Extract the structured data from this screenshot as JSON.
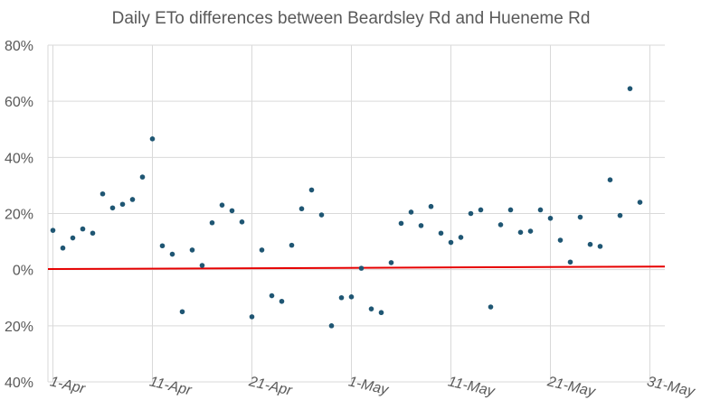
{
  "chart_data": {
    "type": "scatter",
    "title": "Daily ETo differences between Beardsley Rd and Hueneme Rd",
    "xlabel": "",
    "ylabel": "",
    "ylim": [
      -0.4,
      0.8
    ],
    "yticks": [
      0.8,
      0.6,
      0.4,
      0.2,
      0.0,
      -0.2,
      -0.4
    ],
    "ytick_labels": [
      "80%",
      "60%",
      "40%",
      "20%",
      "0%",
      "20%",
      "40%"
    ],
    "xlim": [
      "2024-03-31",
      "2024-06-01"
    ],
    "xticks": [
      "2024-04-01",
      "2024-04-11",
      "2024-04-21",
      "2024-05-01",
      "2024-05-11",
      "2024-05-21",
      "2024-05-31"
    ],
    "xtick_labels": [
      "1-Apr",
      "11-Apr",
      "21-Apr",
      "1-May",
      "11-May",
      "21-May",
      "31-May"
    ],
    "grid": {
      "x": true,
      "y": true
    },
    "marker_color": "#1f5673",
    "reference_line_color": "#e60000",
    "reference_line": {
      "from": [
        "2024-03-31",
        0.002
      ],
      "to": [
        "2024-06-01",
        0.011
      ]
    },
    "points": [
      {
        "x": "2024-04-01",
        "y": 0.14
      },
      {
        "x": "2024-04-02",
        "y": 0.077
      },
      {
        "x": "2024-04-03",
        "y": 0.113
      },
      {
        "x": "2024-04-04",
        "y": 0.145
      },
      {
        "x": "2024-04-05",
        "y": 0.13
      },
      {
        "x": "2024-04-06",
        "y": 0.27
      },
      {
        "x": "2024-04-07",
        "y": 0.22
      },
      {
        "x": "2024-04-08",
        "y": 0.233
      },
      {
        "x": "2024-04-09",
        "y": 0.25
      },
      {
        "x": "2024-04-10",
        "y": 0.33
      },
      {
        "x": "2024-04-11",
        "y": 0.466
      },
      {
        "x": "2024-04-12",
        "y": 0.085
      },
      {
        "x": "2024-04-13",
        "y": 0.055
      },
      {
        "x": "2024-04-14",
        "y": -0.15
      },
      {
        "x": "2024-04-15",
        "y": 0.07
      },
      {
        "x": "2024-04-16",
        "y": 0.015
      },
      {
        "x": "2024-04-17",
        "y": 0.167
      },
      {
        "x": "2024-04-18",
        "y": 0.23
      },
      {
        "x": "2024-04-19",
        "y": 0.21
      },
      {
        "x": "2024-04-20",
        "y": 0.17
      },
      {
        "x": "2024-04-21",
        "y": -0.168
      },
      {
        "x": "2024-04-22",
        "y": 0.07
      },
      {
        "x": "2024-04-23",
        "y": -0.093
      },
      {
        "x": "2024-04-24",
        "y": -0.113
      },
      {
        "x": "2024-04-25",
        "y": 0.087
      },
      {
        "x": "2024-04-26",
        "y": 0.217
      },
      {
        "x": "2024-04-27",
        "y": 0.284
      },
      {
        "x": "2024-04-28",
        "y": 0.195
      },
      {
        "x": "2024-04-29",
        "y": -0.2
      },
      {
        "x": "2024-04-30",
        "y": -0.1
      },
      {
        "x": "2024-05-01",
        "y": -0.097
      },
      {
        "x": "2024-05-02",
        "y": 0.005
      },
      {
        "x": "2024-05-03",
        "y": -0.14
      },
      {
        "x": "2024-05-04",
        "y": -0.153
      },
      {
        "x": "2024-05-05",
        "y": 0.025
      },
      {
        "x": "2024-05-06",
        "y": 0.165
      },
      {
        "x": "2024-05-07",
        "y": 0.205
      },
      {
        "x": "2024-05-08",
        "y": 0.157
      },
      {
        "x": "2024-05-09",
        "y": 0.225
      },
      {
        "x": "2024-05-10",
        "y": 0.13
      },
      {
        "x": "2024-05-11",
        "y": 0.097
      },
      {
        "x": "2024-05-12",
        "y": 0.115
      },
      {
        "x": "2024-05-13",
        "y": 0.2
      },
      {
        "x": "2024-05-14",
        "y": 0.213
      },
      {
        "x": "2024-05-15",
        "y": -0.133
      },
      {
        "x": "2024-05-16",
        "y": 0.16
      },
      {
        "x": "2024-05-17",
        "y": 0.213
      },
      {
        "x": "2024-05-18",
        "y": 0.133
      },
      {
        "x": "2024-05-19",
        "y": 0.137
      },
      {
        "x": "2024-05-20",
        "y": 0.213
      },
      {
        "x": "2024-05-21",
        "y": 0.183
      },
      {
        "x": "2024-05-22",
        "y": 0.105
      },
      {
        "x": "2024-05-23",
        "y": 0.027
      },
      {
        "x": "2024-05-24",
        "y": 0.187
      },
      {
        "x": "2024-05-25",
        "y": 0.09
      },
      {
        "x": "2024-05-26",
        "y": 0.083
      },
      {
        "x": "2024-05-27",
        "y": 0.32
      },
      {
        "x": "2024-05-28",
        "y": 0.193
      },
      {
        "x": "2024-05-29",
        "y": 0.645
      },
      {
        "x": "2024-05-30",
        "y": 0.24
      }
    ]
  }
}
